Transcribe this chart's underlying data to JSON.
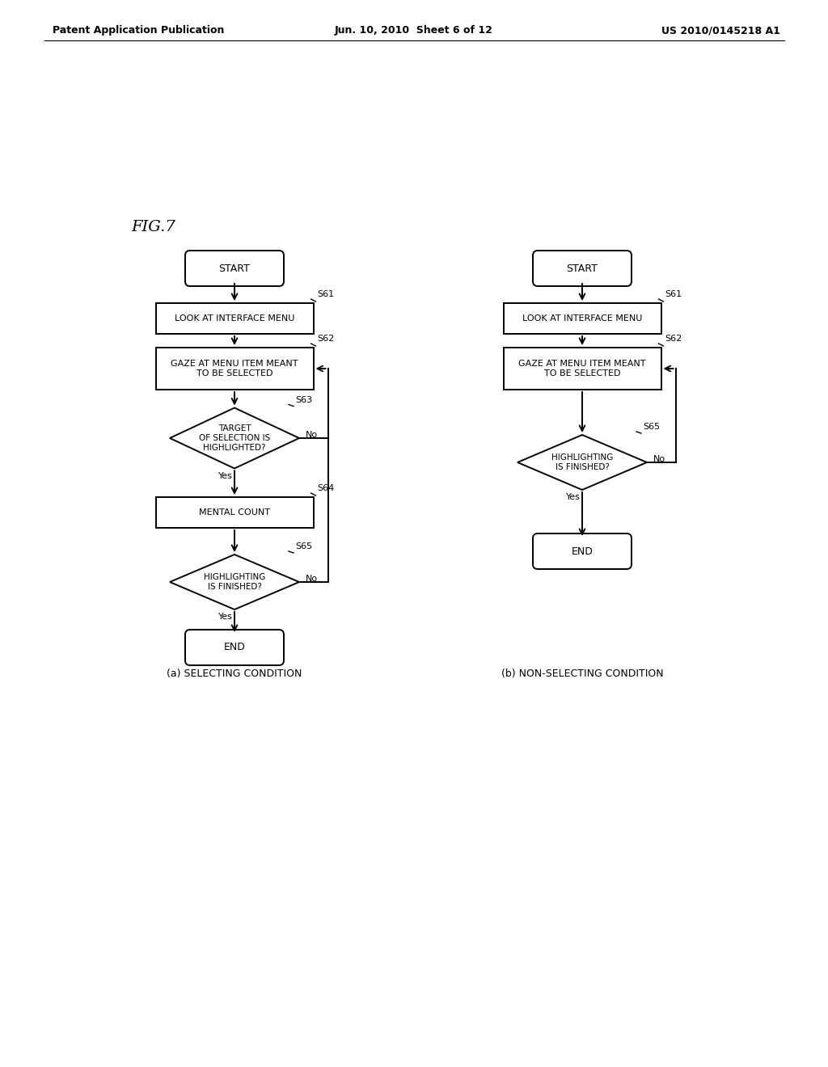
{
  "fig_label": "FIG.7",
  "header_left": "Patent Application Publication",
  "header_center": "Jun. 10, 2010  Sheet 6 of 12",
  "header_right": "US 2010/0145218 A1",
  "bg_color": "#ffffff",
  "caption_a": "(a) SELECTING CONDITION",
  "caption_b": "(b) NON-SELECTING CONDITION",
  "lw": 1.4,
  "arrow_mutation": 10
}
